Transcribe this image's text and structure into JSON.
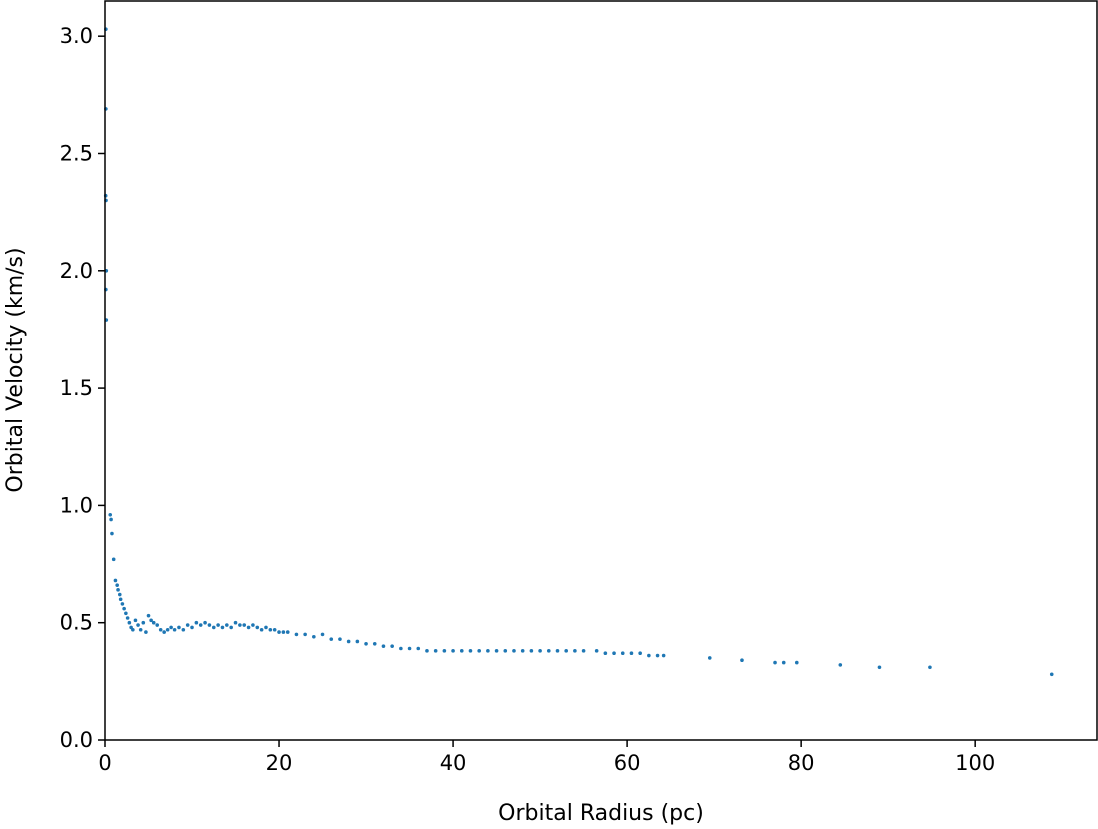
{
  "chart_data": {
    "type": "scatter",
    "title": "",
    "xlabel": "Orbital Radius (pc)",
    "ylabel": "Orbital Velocity (km/s)",
    "xlim": [
      0,
      114
    ],
    "ylim": [
      0,
      3.15
    ],
    "x_ticks": [
      0,
      20,
      40,
      60,
      80,
      100
    ],
    "x_tick_labels": [
      "0",
      "20",
      "40",
      "60",
      "80",
      "100"
    ],
    "y_ticks": [
      0,
      0.5,
      1.0,
      1.5,
      2.0,
      2.5,
      3.0
    ],
    "y_tick_labels": [
      "0.0",
      "0.5",
      "1.0",
      "1.5",
      "2.0",
      "2.5",
      "3.0"
    ],
    "grid": false,
    "legend": "none",
    "marker_color": "#1f77b4",
    "series": [
      {
        "points": [
          [
            0.1,
            3.03
          ],
          [
            0.1,
            2.69
          ],
          [
            0.08,
            2.32
          ],
          [
            0.12,
            2.3
          ],
          [
            0.15,
            2.0
          ],
          [
            0.1,
            1.92
          ],
          [
            0.15,
            1.79
          ],
          [
            0.6,
            0.96
          ],
          [
            0.7,
            0.94
          ],
          [
            0.8,
            0.88
          ],
          [
            1.0,
            0.77
          ],
          [
            1.2,
            0.68
          ],
          [
            1.4,
            0.66
          ],
          [
            1.5,
            0.64
          ],
          [
            1.7,
            0.62
          ],
          [
            1.8,
            0.6
          ],
          [
            2.0,
            0.58
          ],
          [
            2.2,
            0.56
          ],
          [
            2.4,
            0.54
          ],
          [
            2.6,
            0.52
          ],
          [
            2.8,
            0.5
          ],
          [
            3.0,
            0.48
          ],
          [
            3.2,
            0.47
          ],
          [
            3.5,
            0.51
          ],
          [
            3.8,
            0.49
          ],
          [
            4.1,
            0.47
          ],
          [
            4.4,
            0.5
          ],
          [
            4.7,
            0.46
          ],
          [
            5.0,
            0.53
          ],
          [
            5.3,
            0.51
          ],
          [
            5.6,
            0.5
          ],
          [
            6.0,
            0.49
          ],
          [
            6.4,
            0.47
          ],
          [
            6.8,
            0.46
          ],
          [
            7.2,
            0.47
          ],
          [
            7.6,
            0.48
          ],
          [
            8.0,
            0.47
          ],
          [
            8.5,
            0.48
          ],
          [
            9.0,
            0.47
          ],
          [
            9.5,
            0.49
          ],
          [
            10.0,
            0.48
          ],
          [
            10.5,
            0.5
          ],
          [
            11.0,
            0.49
          ],
          [
            11.5,
            0.5
          ],
          [
            12.0,
            0.49
          ],
          [
            12.5,
            0.48
          ],
          [
            13.0,
            0.49
          ],
          [
            13.5,
            0.48
          ],
          [
            14.0,
            0.49
          ],
          [
            14.5,
            0.48
          ],
          [
            15.0,
            0.5
          ],
          [
            15.5,
            0.49
          ],
          [
            16.0,
            0.49
          ],
          [
            16.5,
            0.48
          ],
          [
            17.0,
            0.49
          ],
          [
            17.5,
            0.48
          ],
          [
            18.0,
            0.47
          ],
          [
            18.5,
            0.48
          ],
          [
            19.0,
            0.47
          ],
          [
            19.5,
            0.47
          ],
          [
            20.0,
            0.46
          ],
          [
            20.5,
            0.46
          ],
          [
            21.0,
            0.46
          ],
          [
            22.0,
            0.45
          ],
          [
            23.0,
            0.45
          ],
          [
            24.0,
            0.44
          ],
          [
            25.0,
            0.45
          ],
          [
            26.0,
            0.43
          ],
          [
            27.0,
            0.43
          ],
          [
            28.0,
            0.42
          ],
          [
            29.0,
            0.42
          ],
          [
            30.0,
            0.41
          ],
          [
            31.0,
            0.41
          ],
          [
            32.0,
            0.4
          ],
          [
            33.0,
            0.4
          ],
          [
            34.0,
            0.39
          ],
          [
            35.0,
            0.39
          ],
          [
            36.0,
            0.39
          ],
          [
            37.0,
            0.38
          ],
          [
            38.0,
            0.38
          ],
          [
            39.0,
            0.38
          ],
          [
            40.0,
            0.38
          ],
          [
            41.0,
            0.38
          ],
          [
            42.0,
            0.38
          ],
          [
            43.0,
            0.38
          ],
          [
            44.0,
            0.38
          ],
          [
            45.0,
            0.38
          ],
          [
            46.0,
            0.38
          ],
          [
            47.0,
            0.38
          ],
          [
            48.0,
            0.38
          ],
          [
            49.0,
            0.38
          ],
          [
            50.0,
            0.38
          ],
          [
            51.0,
            0.38
          ],
          [
            52.0,
            0.38
          ],
          [
            53.0,
            0.38
          ],
          [
            54.0,
            0.38
          ],
          [
            55.0,
            0.38
          ],
          [
            56.5,
            0.38
          ],
          [
            57.5,
            0.37
          ],
          [
            58.5,
            0.37
          ],
          [
            59.5,
            0.37
          ],
          [
            60.5,
            0.37
          ],
          [
            61.5,
            0.37
          ],
          [
            62.5,
            0.36
          ],
          [
            63.5,
            0.36
          ],
          [
            64.2,
            0.36
          ],
          [
            69.5,
            0.35
          ],
          [
            73.2,
            0.34
          ],
          [
            77.0,
            0.33
          ],
          [
            78.0,
            0.33
          ],
          [
            79.5,
            0.33
          ],
          [
            84.5,
            0.32
          ],
          [
            89.0,
            0.31
          ],
          [
            94.8,
            0.31
          ],
          [
            108.8,
            0.28
          ]
        ]
      }
    ]
  }
}
